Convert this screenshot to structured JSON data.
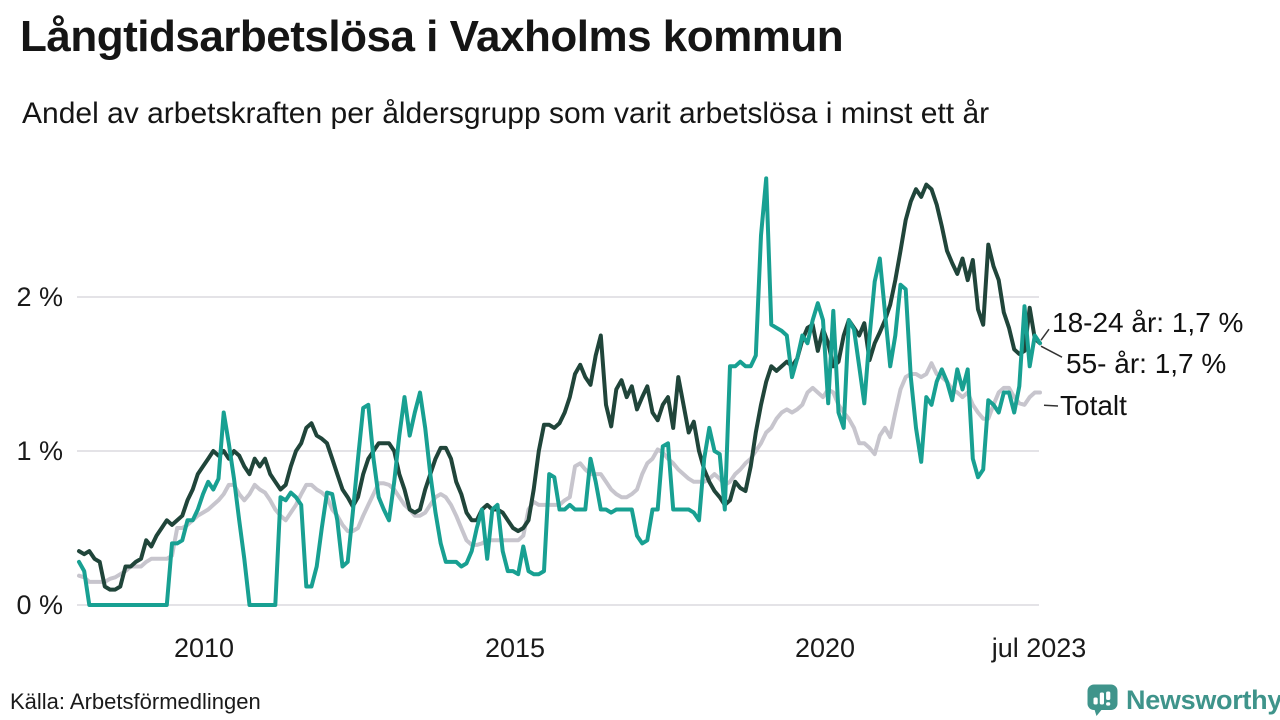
{
  "header": {
    "title": "Långtidsarbetslösa i Vaxholms kommun",
    "subtitle": "Andel av arbetskraften per åldersgrupp som varit arbetslösa i minst ett år"
  },
  "chart_data": {
    "type": "line",
    "frequency": "monthly",
    "x_start": "2008-01",
    "x_end": "2023-07",
    "ylim": [
      0,
      2.9
    ],
    "grid": "horizontal",
    "legend_position": "right-end-labels",
    "yticks": [
      {
        "label": "2 %",
        "value": 2
      },
      {
        "label": "1 %",
        "value": 1
      },
      {
        "label": "0 %",
        "value": 0
      }
    ],
    "xticks": [
      {
        "label": "2010",
        "year": 2010.0
      },
      {
        "label": "2015",
        "year": 2015.0
      },
      {
        "label": "2020",
        "year": 2020.0
      },
      {
        "label": "jul 2023",
        "year": 2023.5
      }
    ],
    "series": [
      {
        "name": "18-24 år",
        "end_label": "18-24 år: 1,7 %",
        "end_value_text": "1,7 %",
        "color": "#18a092",
        "values": [
          0.28,
          0.22,
          0,
          0,
          0,
          0,
          0,
          0,
          0,
          0,
          0,
          0,
          0,
          0,
          0,
          0,
          0,
          0,
          0.4,
          0.4,
          0.42,
          0.55,
          0.55,
          0.62,
          0.72,
          0.8,
          0.75,
          0.82,
          1.25,
          1.05,
          0.82,
          0.55,
          0.3,
          0,
          0,
          0,
          0,
          0,
          0,
          0.7,
          0.68,
          0.73,
          0.7,
          0.65,
          0.12,
          0.12,
          0.25,
          0.5,
          0.73,
          0.72,
          0.55,
          0.25,
          0.28,
          0.6,
          0.95,
          1.28,
          1.3,
          0.95,
          0.7,
          0.62,
          0.55,
          0.8,
          1.1,
          1.35,
          1.1,
          1.25,
          1.38,
          1.15,
          0.85,
          0.6,
          0.4,
          0.28,
          0.28,
          0.28,
          0.25,
          0.27,
          0.35,
          0.5,
          0.62,
          0.3,
          0.62,
          0.65,
          0.35,
          0.22,
          0.22,
          0.2,
          0.38,
          0.22,
          0.2,
          0.2,
          0.22,
          0.85,
          0.83,
          0.62,
          0.62,
          0.65,
          0.62,
          0.62,
          0.62,
          0.95,
          0.8,
          0.62,
          0.62,
          0.6,
          0.62,
          0.62,
          0.62,
          0.62,
          0.45,
          0.4,
          0.42,
          0.62,
          0.62,
          1.03,
          1.05,
          0.62,
          0.62,
          0.62,
          0.62,
          0.6,
          0.55,
          0.95,
          1.15,
          1.0,
          0.98,
          0.62,
          1.55,
          1.55,
          1.58,
          1.55,
          1.55,
          1.62,
          2.4,
          2.77,
          1.82,
          1.8,
          1.78,
          1.75,
          1.48,
          1.6,
          1.75,
          1.7,
          1.85,
          1.96,
          1.85,
          1.31,
          1.91,
          1.25,
          1.15,
          1.85,
          1.79,
          1.55,
          1.31,
          1.74,
          2.1,
          2.25,
          1.9,
          1.55,
          1.75,
          2.08,
          2.05,
          1.48,
          1.15,
          0.93,
          1.35,
          1.3,
          1.45,
          1.53,
          1.45,
          1.33,
          1.53,
          1.4,
          1.53,
          0.95,
          0.83,
          0.88,
          1.33,
          1.3,
          1.25,
          1.38,
          1.38,
          1.25,
          1.42,
          1.94,
          1.55,
          1.75,
          1.7
        ]
      },
      {
        "name": "55- år",
        "end_label": "55- år: 1,7 %",
        "end_value_text": "1,7 %",
        "color": "#20453a",
        "values": [
          0.35,
          0.33,
          0.35,
          0.3,
          0.28,
          0.12,
          0.1,
          0.1,
          0.12,
          0.25,
          0.25,
          0.28,
          0.3,
          0.42,
          0.38,
          0.45,
          0.5,
          0.55,
          0.52,
          0.55,
          0.58,
          0.68,
          0.75,
          0.85,
          0.9,
          0.95,
          1.0,
          0.97,
          1.0,
          0.95,
          1.0,
          0.97,
          0.9,
          0.85,
          0.95,
          0.9,
          0.95,
          0.85,
          0.8,
          0.75,
          0.78,
          0.9,
          1.0,
          1.05,
          1.15,
          1.18,
          1.1,
          1.08,
          1.05,
          0.95,
          0.85,
          0.75,
          0.7,
          0.64,
          0.7,
          0.85,
          0.95,
          1.0,
          1.05,
          1.05,
          1.05,
          1.0,
          0.85,
          0.75,
          0.62,
          0.6,
          0.62,
          0.75,
          0.85,
          0.95,
          1.02,
          1.02,
          0.95,
          0.8,
          0.72,
          0.6,
          0.55,
          0.55,
          0.62,
          0.65,
          0.62,
          0.62,
          0.6,
          0.55,
          0.5,
          0.48,
          0.5,
          0.55,
          0.75,
          1.0,
          1.17,
          1.17,
          1.15,
          1.18,
          1.25,
          1.35,
          1.5,
          1.56,
          1.48,
          1.43,
          1.62,
          1.75,
          1.3,
          1.16,
          1.4,
          1.46,
          1.35,
          1.42,
          1.27,
          1.35,
          1.42,
          1.25,
          1.2,
          1.3,
          1.35,
          1.15,
          1.48,
          1.3,
          1.12,
          1.19,
          1.0,
          0.88,
          0.8,
          0.74,
          0.7,
          0.65,
          0.68,
          0.8,
          0.76,
          0.74,
          0.9,
          1.12,
          1.3,
          1.45,
          1.55,
          1.52,
          1.55,
          1.58,
          1.55,
          1.6,
          1.72,
          1.8,
          1.82,
          1.65,
          1.79,
          1.7,
          1.55,
          1.58,
          1.75,
          1.85,
          1.8,
          1.75,
          1.83,
          1.59,
          1.7,
          1.77,
          1.85,
          1.95,
          2.11,
          2.3,
          2.5,
          2.62,
          2.7,
          2.65,
          2.73,
          2.7,
          2.6,
          2.46,
          2.3,
          2.22,
          2.15,
          2.25,
          2.11,
          2.24,
          1.92,
          1.82,
          2.34,
          2.2,
          2.11,
          1.9,
          1.8,
          1.66,
          1.63,
          1.65,
          1.93,
          1.73,
          1.7
        ]
      },
      {
        "name": "Totalt",
        "end_label": "Totalt",
        "end_value_text": "",
        "color": "#c7c5cd",
        "values": [
          0.19,
          0.18,
          0.15,
          0.15,
          0.15,
          0.15,
          0.17,
          0.18,
          0.2,
          0.22,
          0.25,
          0.25,
          0.25,
          0.28,
          0.3,
          0.3,
          0.3,
          0.3,
          0.32,
          0.5,
          0.5,
          0.52,
          0.55,
          0.58,
          0.6,
          0.62,
          0.65,
          0.68,
          0.72,
          0.78,
          0.78,
          0.72,
          0.68,
          0.72,
          0.78,
          0.75,
          0.73,
          0.68,
          0.62,
          0.58,
          0.55,
          0.6,
          0.65,
          0.72,
          0.78,
          0.78,
          0.75,
          0.73,
          0.7,
          0.62,
          0.58,
          0.52,
          0.48,
          0.48,
          0.5,
          0.58,
          0.65,
          0.72,
          0.79,
          0.79,
          0.78,
          0.75,
          0.7,
          0.65,
          0.62,
          0.58,
          0.58,
          0.6,
          0.65,
          0.7,
          0.72,
          0.7,
          0.65,
          0.58,
          0.5,
          0.42,
          0.39,
          0.39,
          0.4,
          0.42,
          0.42,
          0.42,
          0.42,
          0.42,
          0.42,
          0.42,
          0.45,
          0.62,
          0.67,
          0.65,
          0.65,
          0.65,
          0.65,
          0.65,
          0.68,
          0.7,
          0.9,
          0.92,
          0.88,
          0.85,
          0.85,
          0.85,
          0.8,
          0.75,
          0.72,
          0.7,
          0.7,
          0.72,
          0.75,
          0.85,
          0.92,
          0.95,
          1.01,
          0.99,
          0.95,
          0.92,
          0.88,
          0.85,
          0.82,
          0.8,
          0.8,
          0.8,
          0.82,
          0.85,
          0.82,
          0.78,
          0.8,
          0.85,
          0.88,
          0.92,
          0.95,
          1.0,
          1.05,
          1.12,
          1.15,
          1.21,
          1.25,
          1.27,
          1.25,
          1.27,
          1.3,
          1.38,
          1.41,
          1.38,
          1.35,
          1.4,
          1.38,
          1.3,
          1.25,
          1.21,
          1.15,
          1.05,
          1.05,
          1.02,
          0.98,
          1.1,
          1.15,
          1.09,
          1.25,
          1.4,
          1.48,
          1.5,
          1.5,
          1.48,
          1.5,
          1.57,
          1.5,
          1.48,
          1.45,
          1.4,
          1.38,
          1.35,
          1.38,
          1.3,
          1.25,
          1.21,
          1.21,
          1.3,
          1.38,
          1.41,
          1.41,
          1.35,
          1.31,
          1.3,
          1.35,
          1.38,
          1.38
        ]
      }
    ],
    "title": "Långtidsarbetslösa i Vaxholms kommun",
    "xlabel": "",
    "ylabel": ""
  },
  "footer": {
    "source": "Källa: Arbetsförmedlingen",
    "brand": "Newsworthy"
  },
  "colors": {
    "accent_teal": "#18a092",
    "dark_green": "#20453a",
    "total_gray": "#c7c5cd",
    "gridline": "#e4e3e7",
    "brand_teal": "#3f948b"
  }
}
